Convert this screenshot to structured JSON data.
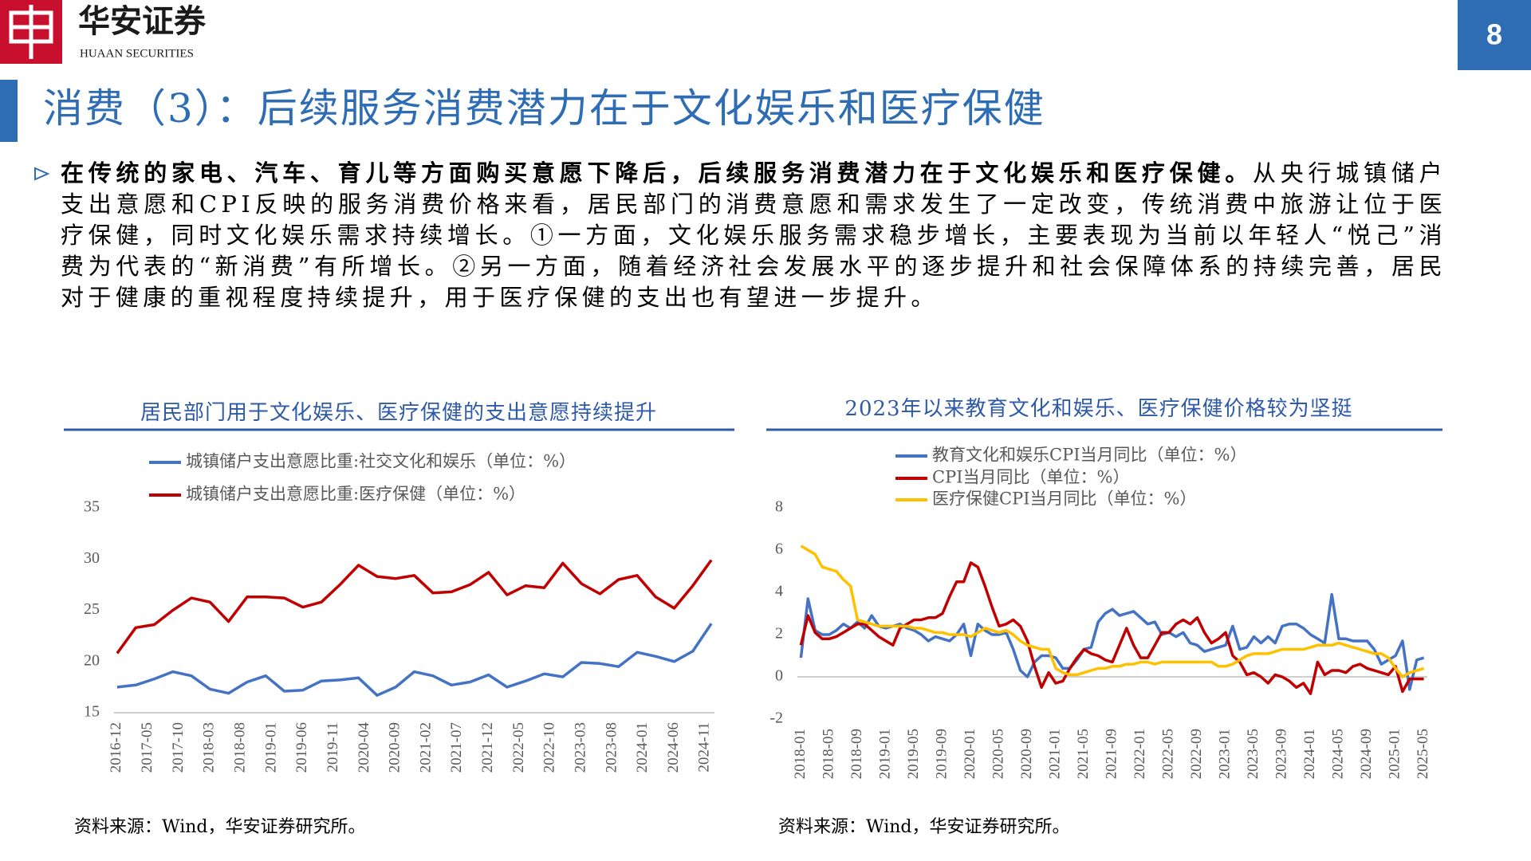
{
  "header": {
    "logo_cn": "华安证券",
    "logo_en": "HUAAN SECURITIES",
    "page_number": "8"
  },
  "title": "消费（3）：后续服务消费潜力在于文化娱乐和医疗保健",
  "body": {
    "bold": "在传统的家电、汽车、育儿等方面购买意愿下降后，后续服务消费潜力在于文化娱乐和医疗保健。",
    "text": "从央行城镇储户支出意愿和CPI反映的服务消费价格来看，居民部门的消费意愿和需求发生了一定改变，传统消费中旅游让位于医疗保健，同时文化娱乐需求持续增长。①一方面，文化娱乐服务需求稳步增长，主要表现为当前以年轻人“悦己”消费为代表的“新消费”有所增长。②另一方面，随着经济社会发展水平的逐步提升和社会保障体系的持续完善，居民对于健康的重视程度持续提升，用于医疗保健的支出也有望进一步提升。"
  },
  "chart_data": [
    {
      "type": "line",
      "title": "居民部门用于文化娱乐、医疗保健的支出意愿持续提升",
      "source": "资料来源：Wind，华安证券研究所。",
      "x": [
        "2016-12",
        "2017-03",
        "2017-06",
        "2017-09",
        "2017-12",
        "2018-03",
        "2018-06",
        "2018-09",
        "2018-12",
        "2019-03",
        "2019-06",
        "2019-09",
        "2019-12",
        "2020-03",
        "2020-06",
        "2020-09",
        "2020-12",
        "2021-03",
        "2021-06",
        "2021-09",
        "2021-12",
        "2022-03",
        "2022-06",
        "2022-09",
        "2022-12",
        "2023-03",
        "2023-06",
        "2023-09",
        "2023-12",
        "2024-03",
        "2024-06",
        "2024-09",
        "2024-12"
      ],
      "xticks": [
        "2016-12",
        "2017-05",
        "2017-10",
        "2018-03",
        "2018-08",
        "2019-01",
        "2019-06",
        "2019-11",
        "2020-04",
        "2020-09",
        "2021-02",
        "2021-07",
        "2021-12",
        "2022-05",
        "2022-10",
        "2023-03",
        "2023-08",
        "2024-01",
        "2024-06",
        "2024-11"
      ],
      "ylim": [
        15,
        35
      ],
      "yticks": [
        15,
        20,
        25,
        30,
        35
      ],
      "series": [
        {
          "name": "城镇储户支出意愿比重:社交文化和娱乐（单位：%）",
          "color": "#4472c4",
          "values": [
            17.5,
            17.7,
            18.3,
            19.0,
            18.6,
            17.3,
            16.9,
            18.0,
            18.6,
            17.1,
            17.2,
            18.1,
            18.2,
            18.4,
            16.7,
            17.5,
            19.0,
            18.6,
            17.7,
            18.0,
            18.7,
            17.5,
            18.1,
            18.8,
            18.5,
            19.9,
            19.8,
            19.5,
            20.9,
            20.5,
            20.0,
            21.0,
            23.7
          ]
        },
        {
          "name": "城镇储户支出意愿比重:医疗保健（单位：%）",
          "color": "#c00000",
          "values": [
            20.8,
            23.3,
            23.6,
            25.0,
            26.2,
            25.8,
            23.9,
            26.3,
            26.3,
            26.2,
            25.3,
            25.8,
            27.5,
            29.4,
            28.3,
            28.1,
            28.4,
            26.7,
            26.8,
            27.5,
            28.7,
            26.5,
            27.4,
            27.2,
            29.6,
            27.6,
            26.6,
            28.0,
            28.4,
            26.3,
            25.2,
            27.4,
            29.9
          ]
        }
      ]
    },
    {
      "type": "line",
      "title": "2023年以来教育文化和娱乐、医疗保健价格较为坚挺",
      "source": "资料来源：Wind，华安证券研究所。",
      "x": [
        "2018-01",
        "2018-02",
        "2018-03",
        "2018-04",
        "2018-05",
        "2018-06",
        "2018-07",
        "2018-08",
        "2018-09",
        "2018-10",
        "2018-11",
        "2018-12",
        "2019-01",
        "2019-02",
        "2019-03",
        "2019-04",
        "2019-05",
        "2019-06",
        "2019-07",
        "2019-08",
        "2019-09",
        "2019-10",
        "2019-11",
        "2019-12",
        "2020-01",
        "2020-02",
        "2020-03",
        "2020-04",
        "2020-05",
        "2020-06",
        "2020-07",
        "2020-08",
        "2020-09",
        "2020-10",
        "2020-11",
        "2020-12",
        "2021-01",
        "2021-02",
        "2021-03",
        "2021-04",
        "2021-05",
        "2021-06",
        "2021-07",
        "2021-08",
        "2021-09",
        "2021-10",
        "2021-11",
        "2021-12",
        "2022-01",
        "2022-02",
        "2022-03",
        "2022-04",
        "2022-05",
        "2022-06",
        "2022-07",
        "2022-08",
        "2022-09",
        "2022-10",
        "2022-11",
        "2022-12",
        "2023-01",
        "2023-02",
        "2023-03",
        "2023-04",
        "2023-05",
        "2023-06",
        "2023-07",
        "2023-08",
        "2023-09",
        "2023-10",
        "2023-11",
        "2023-12",
        "2024-01",
        "2024-02",
        "2024-03",
        "2024-04",
        "2024-05",
        "2024-06",
        "2024-07",
        "2024-08",
        "2024-09",
        "2024-10",
        "2024-11",
        "2024-12",
        "2025-01",
        "2025-02",
        "2025-03",
        "2025-04",
        "2025-05"
      ],
      "xticks": [
        "2018-01",
        "2018-05",
        "2018-09",
        "2019-01",
        "2019-05",
        "2019-09",
        "2020-01",
        "2020-05",
        "2020-09",
        "2021-01",
        "2021-05",
        "2021-09",
        "2022-01",
        "2022-05",
        "2022-09",
        "2023-01",
        "2023-05",
        "2023-09",
        "2024-01",
        "2024-05",
        "2024-09",
        "2025-01",
        "2025-05"
      ],
      "ylim": [
        -2,
        8
      ],
      "yticks": [
        -2,
        0,
        2,
        4,
        6,
        8
      ],
      "series": [
        {
          "name": "教育文化和娱乐CPI当月同比（单位：%）",
          "color": "#4472c4",
          "values": [
            0.9,
            3.7,
            2.2,
            2.0,
            2.0,
            2.2,
            2.5,
            2.3,
            2.6,
            2.3,
            2.9,
            2.4,
            2.3,
            2.4,
            2.5,
            2.3,
            2.2,
            2.0,
            1.7,
            1.9,
            1.8,
            1.7,
            2.0,
            2.5,
            1.0,
            2.5,
            2.2,
            2.0,
            2.0,
            2.1,
            1.3,
            0.3,
            0.0,
            0.7,
            1.0,
            1.0,
            0.9,
            0.4,
            0.4,
            0.8,
            1.3,
            1.4,
            2.6,
            3.0,
            3.2,
            2.9,
            3.0,
            3.1,
            2.8,
            2.5,
            2.6,
            2.0,
            2.1,
            1.9,
            2.1,
            1.6,
            1.5,
            1.2,
            1.3,
            1.4,
            1.5,
            2.4,
            1.3,
            1.4,
            1.9,
            1.6,
            1.9,
            1.6,
            2.4,
            2.5,
            2.5,
            2.3,
            2.0,
            1.8,
            1.6,
            3.9,
            1.8,
            1.8,
            1.7,
            1.7,
            1.7,
            1.3,
            0.6,
            0.8,
            1.0,
            1.7,
            -0.6,
            0.8,
            0.9
          ]
        },
        {
          "name": "CPI当月同比（单位：%）",
          "color": "#c00000",
          "values": [
            1.5,
            2.9,
            2.1,
            1.8,
            1.8,
            1.9,
            2.1,
            2.3,
            2.5,
            2.5,
            2.2,
            1.9,
            1.7,
            1.5,
            2.3,
            2.5,
            2.7,
            2.7,
            2.8,
            2.8,
            3.0,
            3.8,
            4.5,
            4.5,
            5.4,
            5.2,
            4.3,
            3.3,
            2.4,
            2.5,
            2.7,
            2.4,
            1.7,
            0.5,
            -0.5,
            0.2,
            -0.3,
            -0.2,
            0.4,
            0.9,
            1.3,
            1.1,
            1.0,
            0.8,
            0.7,
            1.5,
            2.3,
            1.5,
            0.9,
            0.9,
            1.5,
            2.1,
            2.1,
            2.5,
            2.7,
            2.5,
            2.8,
            2.1,
            1.6,
            1.8,
            2.1,
            1.0,
            0.7,
            0.1,
            0.2,
            0.0,
            -0.3,
            0.1,
            0.0,
            -0.2,
            -0.5,
            -0.3,
            -0.8,
            0.7,
            0.1,
            0.3,
            0.3,
            0.2,
            0.5,
            0.6,
            0.4,
            0.3,
            0.2,
            0.1,
            0.5,
            -0.7,
            -0.1,
            -0.1,
            -0.1
          ]
        },
        {
          "name": "医疗保健CPI当月同比（单位：%）",
          "color": "#ffc000",
          "values": [
            6.2,
            6.0,
            5.8,
            5.2,
            5.1,
            5.0,
            4.6,
            4.3,
            2.7,
            2.6,
            2.5,
            2.4,
            2.4,
            2.4,
            2.4,
            2.4,
            2.3,
            2.3,
            2.2,
            2.1,
            2.1,
            2.0,
            2.0,
            2.0,
            1.9,
            2.1,
            2.3,
            2.2,
            2.1,
            2.2,
            2.0,
            1.7,
            1.5,
            1.4,
            1.3,
            1.3,
            0.4,
            0.2,
            0.1,
            0.1,
            0.2,
            0.3,
            0.4,
            0.4,
            0.5,
            0.5,
            0.6,
            0.6,
            0.7,
            0.7,
            0.6,
            0.7,
            0.7,
            0.7,
            0.7,
            0.7,
            0.7,
            0.7,
            0.7,
            0.5,
            0.5,
            0.6,
            0.8,
            1.0,
            1.1,
            1.1,
            1.1,
            1.2,
            1.3,
            1.3,
            1.3,
            1.3,
            1.4,
            1.5,
            1.5,
            1.5,
            1.6,
            1.5,
            1.4,
            1.3,
            1.2,
            1.1,
            1.1,
            0.9,
            0.4,
            0.0,
            0.2,
            0.3,
            0.4
          ]
        }
      ]
    }
  ]
}
